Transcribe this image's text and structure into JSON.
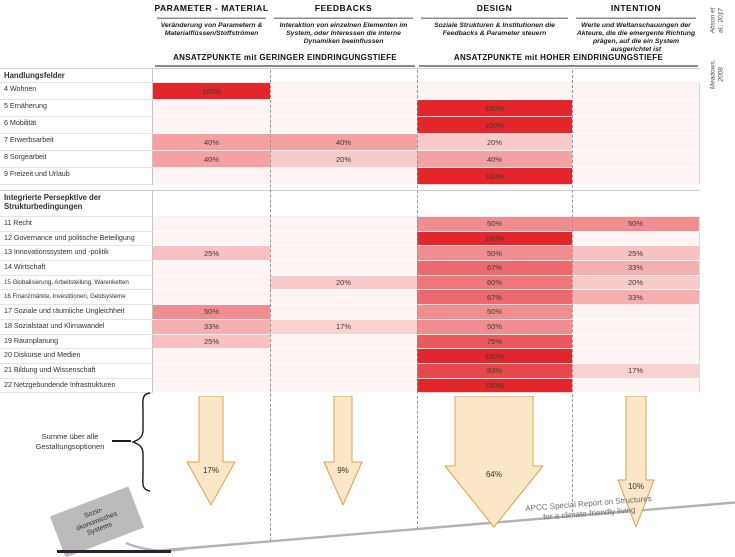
{
  "header": {
    "columns": [
      {
        "key": "param",
        "title": "PARAMETER - MATERIAL",
        "description": "Veränderung von Parametern & Materialflüssen/Stoffströmen"
      },
      {
        "key": "feedbacks",
        "title": "FEEDBACKS",
        "description": "Interaktion von einzelnen Elementen im System, oder Interessen die interne Dynamiken beeinflussen"
      },
      {
        "key": "design",
        "title": "DESIGN",
        "description": "Soziale Strukturen & Institutionen die Feedbacks & Parameter steuern"
      },
      {
        "key": "intention",
        "title": "INTENTION",
        "description": "Werte und Weltanschauungen der Akteure, die die emergente Richtung prägen, auf die ein System ausgerichtet ist"
      }
    ],
    "banners": [
      {
        "label": "ANSATZPUNKTE mit GERINGER EINDRINGUNGSTIEFE"
      },
      {
        "label": "ANSATZPUNKTE mit HOHER EINDRINGUNGSTIEFE"
      }
    ],
    "citations": [
      "Abson et al., 2017",
      "Meadows, 2008"
    ]
  },
  "chart_data": {
    "type": "heatmap",
    "unit": "%",
    "columns": [
      "PARAMETER - MATERIAL",
      "FEEDBACKS",
      "DESIGN",
      "INTENTION"
    ],
    "value_range": [
      0,
      100
    ],
    "sections": [
      {
        "label": "Handlungsfelder",
        "rows": [
          {
            "label": "4 Wohnen",
            "values": [
              100,
              null,
              null,
              null
            ]
          },
          {
            "label": "5 Ernäherung",
            "values": [
              null,
              null,
              100,
              null
            ]
          },
          {
            "label": "6 Mobilität",
            "values": [
              null,
              null,
              100,
              null
            ]
          },
          {
            "label": "7 Erwerbsarbeit",
            "values": [
              40,
              40,
              20,
              null
            ]
          },
          {
            "label": "8 Sorgearbeit",
            "values": [
              40,
              20,
              40,
              null
            ]
          },
          {
            "label": "9 Freizeit und Urlaub",
            "values": [
              null,
              null,
              100,
              null
            ]
          }
        ]
      },
      {
        "label": "Integrierte Persepktive der Strukturbedingungen",
        "rows": [
          {
            "label": "11 Recht",
            "values": [
              null,
              null,
              50,
              50
            ]
          },
          {
            "label": "12 Governance und politische Beteiligung",
            "values": [
              null,
              null,
              100,
              null
            ]
          },
          {
            "label": "13 Innovationssystem und -politik",
            "values": [
              25,
              null,
              50,
              25
            ]
          },
          {
            "label": "14 Wirtschaft",
            "values": [
              null,
              null,
              67,
              33
            ]
          },
          {
            "label": "15 Globalisierung, Arbeitsteilung, Warenketten",
            "values": [
              null,
              20,
              60,
              20
            ],
            "small": true
          },
          {
            "label": "16 Finanzmärkte, Investitionen, Geldsysteme",
            "values": [
              null,
              null,
              67,
              33
            ],
            "small": true
          },
          {
            "label": "17 Soziale und räumliche Ungleichheit",
            "values": [
              50,
              null,
              50,
              null
            ]
          },
          {
            "label": "18 Sozialstaat und Klimawandel",
            "values": [
              33,
              17,
              50,
              null
            ]
          },
          {
            "label": "19 Raumplanung",
            "values": [
              25,
              null,
              75,
              null
            ]
          },
          {
            "label": "20 Diskurse und Medien",
            "values": [
              null,
              null,
              100,
              null
            ]
          },
          {
            "label": "21 Bildung und Wissenschaft",
            "values": [
              null,
              null,
              83,
              17
            ]
          },
          {
            "label": "22 Netzgebundende Infrastrukturen",
            "values": [
              null,
              null,
              100,
              null
            ]
          }
        ]
      }
    ],
    "summary": {
      "label": "Summe über alle Gestaltungsoptionen",
      "arrows": [
        {
          "column": "PARAMETER - MATERIAL",
          "value": 17
        },
        {
          "column": "FEEDBACKS",
          "value": 9
        },
        {
          "column": "DESIGN",
          "value": 64
        },
        {
          "column": "INTENTION",
          "value": 10
        }
      ]
    }
  },
  "footer": {
    "system_box": "Sozio-ökonomisches Systems",
    "caption_line1": "APCC Special Report on Structures",
    "caption_line2": "for a climate-friendly living"
  },
  "colors": {
    "heat_min": "#fdf4f3",
    "heat_max": "#e3252c",
    "arrow_fill": "#fbe6c7",
    "arrow_stroke": "#dfa14c",
    "dashed_line": "#979797"
  }
}
